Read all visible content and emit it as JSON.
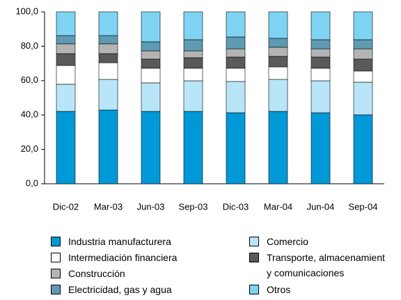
{
  "chart_data": {
    "type": "stacked_bar",
    "categories": [
      "Dic-02",
      "Mar-03",
      "Jun-03",
      "Sep-03",
      "Dic-03",
      "Mar-04",
      "Jun-04",
      "Sep-04"
    ],
    "series": [
      {
        "name": "Industria manufacturera",
        "color": "#0099d8",
        "values": [
          42.1,
          42.9,
          42.1,
          42.1,
          41.3,
          42.1,
          41.3,
          40.1
        ]
      },
      {
        "name": "Comercio",
        "color": "#b9e5f8",
        "values": [
          15.8,
          17.8,
          16.6,
          17.8,
          18.2,
          18.6,
          18.6,
          19.0
        ]
      },
      {
        "name": "Intermediación financiera",
        "color": "#ffffff",
        "values": [
          10.9,
          9.7,
          8.5,
          7.3,
          7.7,
          7.3,
          7.3,
          6.5
        ]
      },
      {
        "name": "Transporte, almacenamient y comunicaciones",
        "color": "#5a5a5a",
        "values": [
          6.9,
          5.3,
          5.3,
          6.1,
          6.5,
          6.1,
          6.5,
          6.9
        ]
      },
      {
        "name": "Construcción",
        "color": "#b4b4b4",
        "values": [
          5.7,
          5.7,
          4.8,
          4.0,
          4.8,
          5.3,
          4.8,
          6.0
        ]
      },
      {
        "name": "Electricidad, gas y agua",
        "color": "#5e9bb3",
        "values": [
          4.8,
          4.8,
          5.3,
          6.5,
          6.9,
          5.2,
          5.3,
          5.3
        ]
      },
      {
        "name": "Otros",
        "color": "#7ed4f2",
        "values": [
          13.8,
          13.8,
          17.4,
          16.2,
          14.6,
          15.4,
          16.2,
          16.2
        ]
      }
    ],
    "ylim": [
      0,
      100
    ],
    "yticks": [
      {
        "value": 0,
        "label": "0,0"
      },
      {
        "value": 20,
        "label": "20,0"
      },
      {
        "value": 40,
        "label": "40,0"
      },
      {
        "value": 60,
        "label": "60,0"
      },
      {
        "value": 80,
        "label": "80,0"
      },
      {
        "value": 100,
        "label": "100,0"
      }
    ]
  }
}
